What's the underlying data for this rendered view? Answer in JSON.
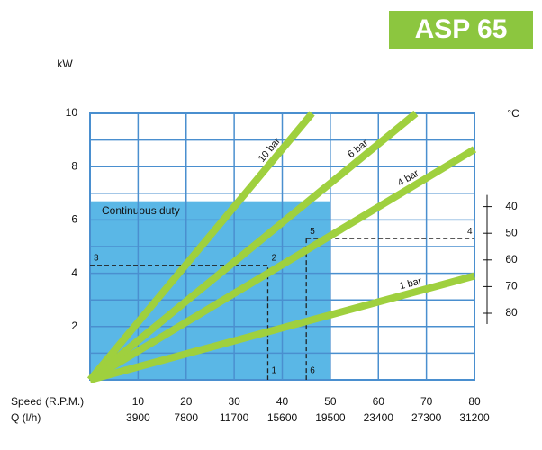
{
  "chart_data": {
    "type": "line",
    "title": "ASP 65",
    "y_label": "kW",
    "y2_label": "°C",
    "x_row_label": "Speed (R.P.M.)",
    "flow_row_label": "Q (l/h)",
    "xlim": [
      0,
      80
    ],
    "ylim": [
      0,
      10
    ],
    "xticks": [
      10,
      20,
      30,
      40,
      50,
      60,
      70,
      80
    ],
    "flow_ticks": [
      3900,
      7800,
      11700,
      15600,
      19500,
      23400,
      27300,
      31200
    ],
    "yticks": [
      2,
      4,
      6,
      8,
      10
    ],
    "ygrid": [
      1,
      2,
      3,
      4,
      5,
      6,
      7,
      8,
      9,
      10
    ],
    "xgrid": [
      10,
      20,
      30,
      40,
      50,
      60,
      70,
      80
    ],
    "y2lim": [
      105,
      5
    ],
    "y2ticks": [
      40,
      50,
      60,
      70,
      80
    ],
    "grid": true,
    "grid_color": "#4a8fcf",
    "duty": {
      "label": "Continuous duty",
      "xlim": [
        0,
        50
      ],
      "ymax": 6.7,
      "color": "#5ab7e6"
    },
    "series": [
      {
        "name": "10 bar",
        "color": "#9fd03e",
        "x": [
          0,
          46.2
        ],
        "values": [
          0,
          10
        ]
      },
      {
        "name": "6 bar",
        "color": "#9fd03e",
        "x": [
          0,
          67.8
        ],
        "values": [
          0,
          10
        ]
      },
      {
        "name": "4 bar",
        "color": "#9fd03e",
        "x": [
          0,
          80
        ],
        "values": [
          0,
          8.65
        ]
      },
      {
        "name": "1 bar",
        "color": "#9fd03e",
        "x": [
          0,
          80
        ],
        "values": [
          0,
          3.9
        ]
      }
    ],
    "guides": [
      {
        "x": [
          0,
          37,
          37
        ],
        "values": [
          4.3,
          4.3,
          0
        ]
      },
      {
        "x": [
          45,
          80
        ],
        "values": [
          5.3,
          5.3
        ]
      },
      {
        "x": [
          45,
          45
        ],
        "values": [
          5.3,
          0
        ]
      }
    ],
    "points": [
      {
        "label": "1",
        "x": 37,
        "y": 0
      },
      {
        "label": "2",
        "x": 37,
        "y": 4.3
      },
      {
        "label": "3",
        "x": 0,
        "y": 4.3
      },
      {
        "label": "4",
        "x": 80,
        "y": 5.3
      },
      {
        "label": "5",
        "x": 45,
        "y": 5.3
      },
      {
        "label": "6",
        "x": 45,
        "y": 0
      }
    ]
  }
}
